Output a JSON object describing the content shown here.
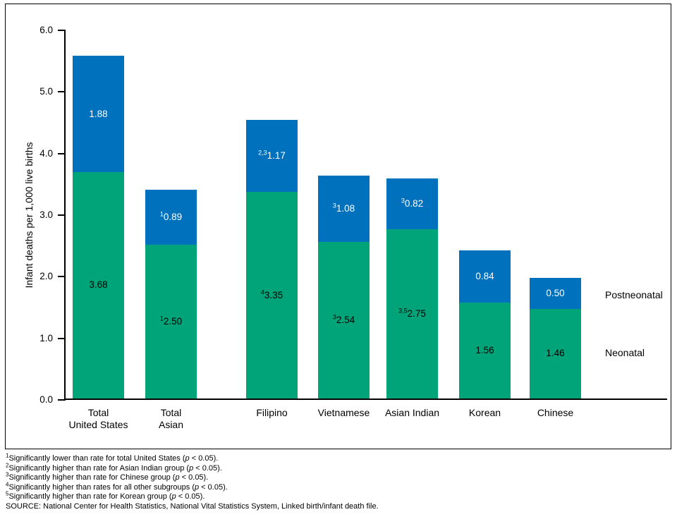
{
  "chart_data": {
    "type": "bar",
    "stacked": true,
    "title": "",
    "xlabel": "",
    "ylabel": "Infant deaths per 1,000 live births",
    "ylim": [
      0,
      6
    ],
    "ytick_labels": [
      "0.0",
      "1.0",
      "2.0",
      "3.0",
      "4.0",
      "5.0",
      "6.0"
    ],
    "grid": false,
    "legend_position": "right-inside",
    "legend": [
      "Postneonatal",
      "Neonatal"
    ],
    "categories": [
      [
        "Total",
        "United States"
      ],
      [
        "Total",
        "Asian"
      ],
      [
        "Filipino"
      ],
      [
        "Vietnamese"
      ],
      [
        "Asian Indian"
      ],
      [
        "Korean"
      ],
      [
        "Chinese"
      ]
    ],
    "series": [
      {
        "name": "Neonatal",
        "color": "#00a478",
        "label_color": "#000000",
        "values": [
          3.68,
          2.5,
          3.35,
          2.54,
          2.75,
          1.56,
          1.46
        ],
        "labels": [
          "3.68",
          "2.50",
          "3.35",
          "2.54",
          "2.75",
          "1.56",
          "1.46"
        ],
        "label_sups": [
          "",
          "1",
          "4",
          "3",
          "3,5",
          "",
          ""
        ]
      },
      {
        "name": "Postneonatal",
        "color": "#0071bc",
        "label_color": "#ffffff",
        "values": [
          1.88,
          0.89,
          1.17,
          1.08,
          0.82,
          0.84,
          0.5
        ],
        "labels": [
          "1.88",
          "0.89",
          "1.17",
          "1.08",
          "0.82",
          "0.84",
          "0.50"
        ],
        "label_sups": [
          "",
          "1",
          "2,3",
          "3",
          "3",
          "",
          ""
        ]
      }
    ]
  },
  "footnotes": [
    {
      "sup": "1",
      "text_before_p": "Significantly lower than rate for total United States (",
      "p_italic": "p",
      "text_after_p": " < 0.05)."
    },
    {
      "sup": "2",
      "text_before_p": "Significantly higher than rate for Asian Indian group (",
      "p_italic": "p",
      "text_after_p": " < 0.05)."
    },
    {
      "sup": "3",
      "text_before_p": "Significantly higher than rate for Chinese group (",
      "p_italic": "p",
      "text_after_p": " < 0.05)."
    },
    {
      "sup": "4",
      "text_before_p": "Significantly higher than rates for all other subgroups (",
      "p_italic": "p",
      "text_after_p": " < 0.05)."
    },
    {
      "sup": "5",
      "text_before_p": "Significantly higher than rate for Korean group (",
      "p_italic": "p",
      "text_after_p": " < 0.05)."
    },
    {
      "sup": "",
      "text_before_p": "SOURCE: National Center for Health Statistics, National Vital Statistics System, Linked birth/infant death file.",
      "p_italic": "",
      "text_after_p": ""
    }
  ]
}
